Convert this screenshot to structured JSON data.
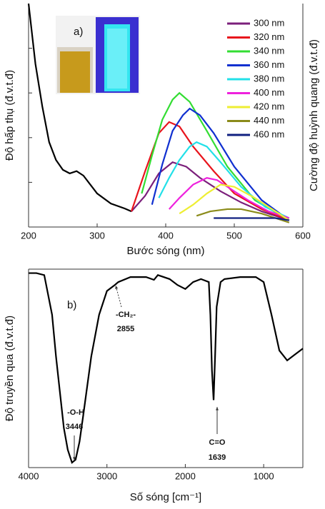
{
  "chart_data": [
    {
      "type": "line",
      "panel_label": "a)",
      "x_label": "Bước sóng (nm)",
      "y_label": "Độ hấp thụ (đ.v.t.đ)",
      "y2_label": "Cường độ huỳnh quang (đ.v.t.đ)",
      "xlim": [
        200,
        600
      ],
      "xticks": [
        200,
        300,
        400,
        500,
        600
      ],
      "ylim": [
        0,
        100
      ],
      "yticks": [
        20,
        40,
        60,
        80
      ],
      "series": [
        {
          "color": "#000000",
          "x": [
            200,
            210,
            220,
            230,
            240,
            250,
            260,
            270,
            280,
            290,
            300,
            320,
            340,
            350
          ],
          "values": [
            100,
            73,
            54,
            38,
            30,
            25.6,
            24,
            25,
            23,
            19,
            15,
            10.5,
            8.3,
            7
          ]
        },
        {
          "name": "300 nm",
          "color": "#7b1f7b",
          "x": [
            350,
            370,
            390,
            410,
            430,
            450,
            480,
            510,
            540,
            580
          ],
          "values": [
            7,
            14,
            24,
            29,
            27,
            22,
            16,
            11,
            7,
            3
          ]
        },
        {
          "name": "320 nm",
          "color": "#e8141c",
          "x": [
            350,
            370,
            390,
            405,
            420,
            440,
            470,
            500,
            540,
            580
          ],
          "values": [
            7,
            25,
            42,
            47,
            45,
            36,
            25,
            15,
            8,
            3
          ]
        },
        {
          "name": "340 nm",
          "color": "#33dd33",
          "x": [
            365,
            380,
            395,
            410,
            420,
            435,
            460,
            490,
            530,
            580
          ],
          "values": [
            15,
            32,
            48,
            57,
            60,
            56,
            43,
            27,
            12,
            3
          ]
        },
        {
          "name": "360 nm",
          "color": "#1030d0",
          "x": [
            380,
            395,
            410,
            425,
            435,
            450,
            470,
            500,
            540,
            580
          ],
          "values": [
            10,
            28,
            43,
            50,
            53,
            50,
            42,
            27,
            12,
            3
          ]
        },
        {
          "name": "380 nm",
          "color": "#22e0e8",
          "x": [
            390,
            405,
            420,
            435,
            445,
            460,
            480,
            510,
            545,
            580
          ],
          "values": [
            13,
            22,
            30,
            36,
            38,
            36,
            29,
            18,
            9,
            4
          ]
        },
        {
          "name": "400 nm",
          "color": "#ee22dd",
          "x": [
            405,
            420,
            440,
            460,
            475,
            495,
            520,
            550,
            580
          ],
          "values": [
            8,
            13,
            19,
            22,
            21,
            17,
            12,
            7,
            4
          ]
        },
        {
          "name": "420 nm",
          "color": "#eeee33",
          "x": [
            420,
            440,
            460,
            480,
            500,
            530,
            555,
            580
          ],
          "values": [
            6,
            10,
            15,
            19,
            18,
            13,
            8,
            3
          ]
        },
        {
          "name": "440 nm",
          "color": "#8b8b1a",
          "x": [
            445,
            465,
            490,
            510,
            540,
            580
          ],
          "values": [
            5,
            7,
            8,
            8,
            6,
            2
          ]
        },
        {
          "name": "460 nm",
          "color": "#102080",
          "x": [
            470,
            500,
            530,
            560,
            580
          ],
          "values": [
            4,
            4,
            4,
            4,
            3
          ]
        }
      ]
    },
    {
      "type": "line",
      "panel_label": "b)",
      "x_label": "Số sóng [cm⁻¹]",
      "y_label": "Độ truyền qua (đ.v.t.đ)",
      "xlim": [
        4000,
        500
      ],
      "xticks": [
        4000,
        3000,
        2000,
        1000
      ],
      "ylim": [
        0,
        100
      ],
      "annotations": [
        "-CH₂-",
        "2855",
        "-O-H",
        "3446",
        "C=O",
        "1639"
      ],
      "series": [
        {
          "color": "#000000",
          "x": [
            4000,
            3900,
            3800,
            3700,
            3650,
            3600,
            3550,
            3500,
            3446,
            3400,
            3350,
            3300,
            3200,
            3100,
            3000,
            2900,
            2855,
            2700,
            2500,
            2400,
            2350,
            2200,
            2100,
            2000,
            1900,
            1800,
            1700,
            1680,
            1660,
            1639,
            1620,
            1600,
            1550,
            1500,
            1300,
            1100,
            1000,
            900,
            800,
            700,
            600,
            500
          ],
          "values": [
            98,
            98,
            97,
            77,
            56,
            38,
            20,
            9,
            2.5,
            4,
            13,
            27,
            56,
            77,
            89,
            92,
            93.5,
            96,
            96,
            94.6,
            97,
            95,
            92,
            90,
            93.5,
            95,
            93.5,
            77,
            49,
            34,
            56,
            81,
            93.5,
            95,
            96,
            96,
            93.5,
            77,
            59,
            54,
            57,
            60
          ]
        }
      ]
    }
  ]
}
